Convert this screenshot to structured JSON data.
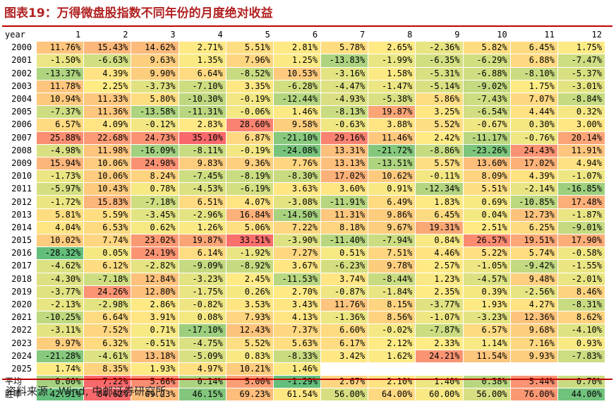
{
  "title": "图表19：万得微盘股指数不同年份的月度绝对收益",
  "source": "资料来源：Wind, 中邮证券研究所",
  "header": {
    "row_label": "year",
    "months": [
      "1",
      "2",
      "3",
      "4",
      "5",
      "6",
      "7",
      "8",
      "9",
      "10",
      "11",
      "12"
    ]
  },
  "rows": [
    {
      "label": "2000",
      "values": [
        "11.76%",
        "15.43%",
        "14.62%",
        "2.71%",
        "5.51%",
        "2.81%",
        "5.78%",
        "2.65%",
        "-2.36%",
        "5.82%",
        "6.45%",
        "1.75%"
      ]
    },
    {
      "label": "2001",
      "values": [
        "-1.50%",
        "-6.63%",
        "9.63%",
        "1.35%",
        "7.96%",
        "1.25%",
        "-13.83%",
        "-1.99%",
        "-6.35%",
        "-6.29%",
        "6.88%",
        "-7.47%"
      ]
    },
    {
      "label": "2002",
      "values": [
        "-13.37%",
        "4.39%",
        "9.90%",
        "6.64%",
        "-8.52%",
        "10.53%",
        "-3.16%",
        "1.58%",
        "-5.31%",
        "-6.88%",
        "-8.10%",
        "-5.37%"
      ]
    },
    {
      "label": "2003",
      "values": [
        "11.78%",
        "2.25%",
        "-3.73%",
        "-7.10%",
        "3.35%",
        "-6.28%",
        "-4.47%",
        "-1.47%",
        "-5.14%",
        "-9.02%",
        "1.75%",
        "-3.01%"
      ]
    },
    {
      "label": "2004",
      "values": [
        "10.94%",
        "11.33%",
        "5.80%",
        "-10.30%",
        "-0.19%",
        "-12.44%",
        "-4.93%",
        "-5.38%",
        "5.86%",
        "-7.43%",
        "7.07%",
        "-8.84%"
      ]
    },
    {
      "label": "2005",
      "values": [
        "-7.37%",
        "11.36%",
        "-13.58%",
        "-11.31%",
        "-0.06%",
        "1.46%",
        "-8.13%",
        "19.87%",
        "3.25%",
        "-6.54%",
        "4.44%",
        "0.32%"
      ]
    },
    {
      "label": "2006",
      "values": [
        "6.57%",
        "4.09%",
        "-0.12%",
        "2.83%",
        "28.60%",
        "9.58%",
        "-0.63%",
        "3.88%",
        "5.52%",
        "-0.67%",
        "0.30%",
        "3.00%"
      ]
    },
    {
      "label": "2007",
      "values": [
        "25.88%",
        "22.68%",
        "24.73%",
        "35.10%",
        "6.87%",
        "-21.10%",
        "29.16%",
        "11.46%",
        "2.42%",
        "-11.17%",
        "-0.76%",
        "20.14%"
      ]
    },
    {
      "label": "2008",
      "values": [
        "-4.98%",
        "11.98%",
        "-16.09%",
        "-8.11%",
        "-0.19%",
        "-24.08%",
        "13.31%",
        "-21.72%",
        "-8.86%",
        "-23.26%",
        "24.43%",
        "11.91%"
      ]
    },
    {
      "label": "2009",
      "values": [
        "15.94%",
        "10.06%",
        "24.98%",
        "9.83%",
        "9.36%",
        "7.76%",
        "13.13%",
        "-13.51%",
        "5.57%",
        "13.60%",
        "17.02%",
        "4.94%"
      ]
    },
    {
      "label": "2010",
      "values": [
        "-1.73%",
        "10.06%",
        "8.24%",
        "-7.45%",
        "-8.19%",
        "-8.30%",
        "17.02%",
        "10.62%",
        "-0.11%",
        "8.09%",
        "4.39%",
        "-1.07%"
      ]
    },
    {
      "label": "2011",
      "values": [
        "-5.97%",
        "10.43%",
        "0.78%",
        "-4.53%",
        "-6.19%",
        "3.63%",
        "3.60%",
        "0.91%",
        "-12.34%",
        "5.51%",
        "-2.14%",
        "-16.85%"
      ]
    },
    {
      "label": "2012",
      "values": [
        "-1.72%",
        "15.83%",
        "-7.18%",
        "6.51%",
        "4.07%",
        "-3.08%",
        "-11.91%",
        "6.49%",
        "1.83%",
        "0.69%",
        "-10.85%",
        "17.48%"
      ]
    },
    {
      "label": "2013",
      "values": [
        "5.81%",
        "5.59%",
        "-3.45%",
        "-2.96%",
        "16.84%",
        "-14.50%",
        "11.31%",
        "9.86%",
        "6.45%",
        "0.04%",
        "12.73%",
        "-1.87%"
      ]
    },
    {
      "label": "2014",
      "values": [
        "4.04%",
        "6.53%",
        "0.62%",
        "1.26%",
        "5.06%",
        "7.22%",
        "8.18%",
        "9.67%",
        "19.31%",
        "2.51%",
        "6.25%",
        "-9.01%"
      ]
    },
    {
      "label": "2015",
      "values": [
        "10.02%",
        "7.74%",
        "23.02%",
        "19.87%",
        "33.51%",
        "-3.90%",
        "-11.40%",
        "-7.94%",
        "0.84%",
        "26.57%",
        "19.51%",
        "17.90%"
      ]
    },
    {
      "label": "2016",
      "values": [
        "-28.32%",
        "0.05%",
        "24.19%",
        "6.14%",
        "-1.92%",
        "7.27%",
        "0.51%",
        "7.51%",
        "4.46%",
        "5.22%",
        "5.74%",
        "-0.58%"
      ]
    },
    {
      "label": "2017",
      "values": [
        "-4.62%",
        "6.12%",
        "-2.82%",
        "-9.09%",
        "-8.92%",
        "3.67%",
        "-6.23%",
        "9.78%",
        "2.57%",
        "-1.05%",
        "-9.42%",
        "-1.55%"
      ]
    },
    {
      "label": "2018",
      "values": [
        "-4.30%",
        "-7.18%",
        "12.84%",
        "-3.23%",
        "2.45%",
        "-11.53%",
        "3.74%",
        "-8.44%",
        "1.23%",
        "-4.57%",
        "9.48%",
        "-2.01%"
      ]
    },
    {
      "label": "2019",
      "values": [
        "-3.77%",
        "24.26%",
        "12.80%",
        "-1.75%",
        "0.26%",
        "2.70%",
        "-0.87%",
        "-1.84%",
        "2.35%",
        "0.39%",
        "-2.56%",
        "8.46%"
      ]
    },
    {
      "label": "2020",
      "values": [
        "-2.13%",
        "-2.98%",
        "2.86%",
        "-0.82%",
        "3.53%",
        "3.43%",
        "11.76%",
        "8.15%",
        "-3.77%",
        "1.93%",
        "4.27%",
        "-8.31%"
      ]
    },
    {
      "label": "2021",
      "values": [
        "-10.25%",
        "6.64%",
        "3.91%",
        "0.08%",
        "7.93%",
        "4.13%",
        "-1.36%",
        "8.56%",
        "-1.07%",
        "-3.23%",
        "12.36%",
        "8.62%"
      ]
    },
    {
      "label": "2022",
      "values": [
        "-3.11%",
        "7.52%",
        "0.71%",
        "-17.10%",
        "12.43%",
        "7.37%",
        "6.60%",
        "-0.02%",
        "-7.87%",
        "6.57%",
        "9.68%",
        "-4.10%"
      ]
    },
    {
      "label": "2023",
      "values": [
        "9.97%",
        "6.32%",
        "-0.51%",
        "-4.75%",
        "5.52%",
        "5.63%",
        "6.17%",
        "2.12%",
        "2.33%",
        "1.14%",
        "7.16%",
        "0.93%"
      ]
    },
    {
      "label": "2024",
      "values": [
        "-21.28%",
        "-4.61%",
        "13.18%",
        "-5.09%",
        "0.83%",
        "-8.33%",
        "3.42%",
        "1.62%",
        "24.21%",
        "11.54%",
        "9.93%",
        "-7.83%"
      ]
    },
    {
      "label": "2025",
      "values": [
        "1.74%",
        "8.35%",
        "1.93%",
        "4.97%",
        "10.21%",
        "1.46%",
        "",
        "",
        "",
        "",
        "",
        ""
      ]
    }
  ],
  "summary_rows": [
    {
      "label": "平均",
      "values": [
        "0.00%",
        "7.22%",
        "5.66%",
        "0.14%",
        "5.00%",
        "-1.29%",
        "2.67%",
        "2.10%",
        "1.40%",
        "0.38%",
        "5.44%",
        "0.70%"
      ]
    },
    {
      "label": "胜率",
      "values": [
        "42.31%",
        "84.62%",
        "69.23%",
        "46.15%",
        "69.23%",
        "61.54%",
        "56.00%",
        "64.00%",
        "60.00%",
        "56.00%",
        "76.00%",
        "44.00%"
      ]
    }
  ],
  "colors": {
    "title": "#b22222",
    "rule": "#c00000",
    "scale_red": "#f8696b",
    "scale_yellow": "#ffeb84",
    "scale_green": "#63be7b"
  }
}
